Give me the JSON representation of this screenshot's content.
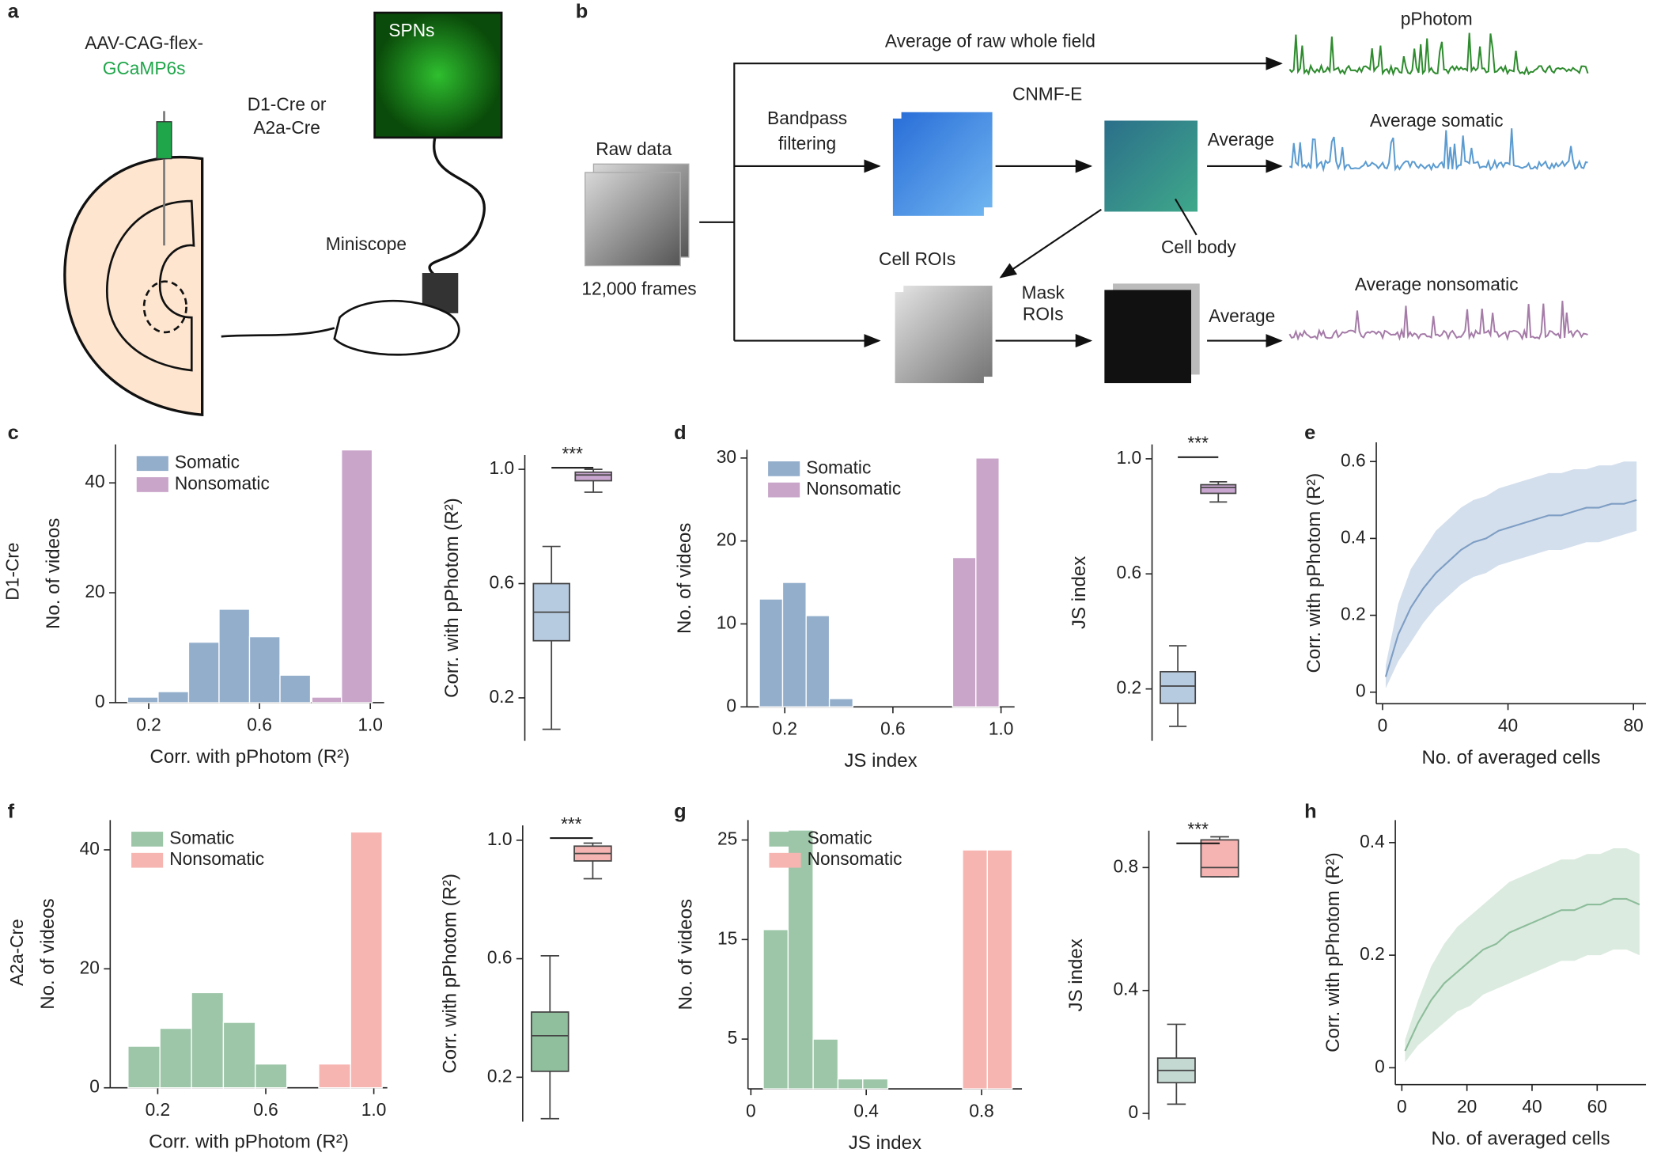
{
  "panel_labels": [
    "a",
    "b",
    "c",
    "d",
    "e",
    "f",
    "g",
    "h"
  ],
  "row_labels": [
    "D1-Cre",
    "A2a-Cre"
  ],
  "diagram_a": {
    "virus_line1": "AAV-CAG-flex-",
    "virus_line2": "GCaMP6s",
    "mouse_line1": "D1-Cre or",
    "mouse_line2": "A2a-Cre",
    "image_label": "SPNs",
    "device": "Miniscope"
  },
  "diagram_b": {
    "top_arrow": "Average of raw whole field",
    "trace1": "pPhotom",
    "method": "CNMF-E",
    "filter_line1": "Bandpass",
    "filter_line2": "filtering",
    "raw": "Raw data",
    "frames": "12,000 frames",
    "average1": "Average",
    "trace2": "Average somatic",
    "cell_body": "Cell body",
    "cell_rois": "Cell ROIs",
    "mask_line1": "Mask",
    "mask_line2": "ROIs",
    "average2": "Average",
    "trace3": "Average nonsomatic"
  },
  "chart_data": [
    {
      "type": "histogram",
      "xlabel": "Corr. with pPhotom (R²)",
      "ylabel": "No. of videos",
      "xlim": [
        0.08,
        1.05
      ],
      "ylim": [
        0,
        47
      ],
      "xticks": [
        0.2,
        0.6,
        {
          "value": 1,
          "label": "1.0"
        }
      ],
      "yticks": [
        0,
        20,
        40
      ],
      "legend": "upper left",
      "series": [
        {
          "name": "Somatic",
          "color": "#93aecb",
          "bins": [
            0.124,
            0.234,
            0.344,
            0.454,
            0.564,
            0.674,
            0.784
          ],
          "values": [
            1,
            2,
            11,
            17,
            12,
            5
          ]
        },
        {
          "name": "Nonsomatic",
          "color": "#c9a5c9",
          "bins": [
            0.789,
            0.896,
            1.007
          ],
          "values": [
            1,
            46
          ]
        }
      ]
    },
    {
      "type": "box",
      "ylabel": "Corr. with pPhotom (R²)",
      "ylim": [
        0.05,
        1.05
      ],
      "yticks": [
        0.2,
        0.6,
        {
          "value": 1,
          "label": "1.0"
        }
      ],
      "annotation": "***",
      "boxes": [
        {
          "color": "#b7cbe0",
          "whislo": 0.09,
          "q1": 0.4,
          "med": 0.5,
          "q3": 0.6,
          "whishi": 0.73
        },
        {
          "color": "#c8a6cf",
          "whislo": 0.92,
          "q1": 0.96,
          "med": 0.98,
          "q3": 0.99,
          "whishi": 1.0
        }
      ]
    },
    {
      "type": "histogram",
      "xlabel": "JS index",
      "ylabel": "No. of videos",
      "xlim": [
        0.06,
        1.05
      ],
      "ylim": [
        0,
        31
      ],
      "xticks": [
        0.2,
        0.6,
        {
          "value": 1,
          "label": "1.0"
        }
      ],
      "yticks": [
        0,
        10,
        20,
        30
      ],
      "legend": "upper left",
      "series": [
        {
          "name": "Somatic",
          "color": "#93aecb",
          "bins": [
            0.106,
            0.192,
            0.279,
            0.365,
            0.452
          ],
          "values": [
            13,
            15,
            11,
            1
          ]
        },
        {
          "name": "Nonsomatic",
          "color": "#c9a5c9",
          "bins": [
            0.821,
            0.907,
            0.993
          ],
          "values": [
            18,
            30
          ]
        }
      ]
    },
    {
      "type": "box",
      "ylabel": "JS index",
      "ylim": [
        0.02,
        1.05
      ],
      "yticks": [
        0.2,
        0.6,
        {
          "value": 1,
          "label": "1.0"
        }
      ],
      "annotation": "***",
      "boxes": [
        {
          "color": "#b7cbe0",
          "whislo": 0.07,
          "q1": 0.15,
          "med": 0.21,
          "q3": 0.26,
          "whishi": 0.35
        },
        {
          "color": "#c8a6cf",
          "whislo": 0.85,
          "q1": 0.88,
          "med": 0.9,
          "q3": 0.91,
          "whishi": 0.92
        }
      ]
    },
    {
      "type": "line",
      "xlabel": "No. of averaged cells",
      "ylabel": "Corr. with pPhotom (R²)",
      "xlim": [
        -2,
        84
      ],
      "ylim": [
        -0.03,
        0.65
      ],
      "xticks": [
        0,
        40,
        80
      ],
      "yticks": [
        0,
        0.2,
        0.4,
        0.6
      ],
      "x": [
        1,
        5,
        9,
        13,
        17,
        21,
        25,
        29,
        33,
        37,
        41,
        45,
        49,
        53,
        57,
        61,
        65,
        69,
        73,
        77,
        81
      ],
      "series": [
        {
          "color": "#7e9ec4",
          "band_color": "#c9d7e8",
          "values": [
            0.04,
            0.15,
            0.22,
            0.27,
            0.31,
            0.34,
            0.37,
            0.39,
            0.4,
            0.42,
            0.43,
            0.44,
            0.45,
            0.46,
            0.46,
            0.47,
            0.48,
            0.48,
            0.49,
            0.49,
            0.5
          ],
          "lower": [
            0.01,
            0.08,
            0.13,
            0.18,
            0.22,
            0.25,
            0.28,
            0.3,
            0.31,
            0.33,
            0.34,
            0.35,
            0.36,
            0.37,
            0.37,
            0.38,
            0.39,
            0.39,
            0.4,
            0.41,
            0.42
          ],
          "upper": [
            0.07,
            0.23,
            0.32,
            0.37,
            0.42,
            0.45,
            0.48,
            0.5,
            0.51,
            0.53,
            0.54,
            0.55,
            0.56,
            0.57,
            0.57,
            0.58,
            0.58,
            0.59,
            0.59,
            0.6,
            0.6
          ]
        }
      ]
    },
    {
      "type": "histogram",
      "xlabel": "Corr. with pPhotom (R²)",
      "ylabel": "No. of videos",
      "xlim": [
        0.024,
        1.05
      ],
      "ylim": [
        0,
        45
      ],
      "xticks": [
        0.2,
        0.6,
        {
          "value": 1,
          "label": "1.0"
        }
      ],
      "yticks": [
        0,
        20,
        40
      ],
      "legend": "upper left",
      "series": [
        {
          "name": "Somatic",
          "color": "#9dc6a8",
          "bins": [
            0.09,
            0.208,
            0.325,
            0.443,
            0.561,
            0.678
          ],
          "values": [
            7,
            10,
            16,
            11,
            4
          ]
        },
        {
          "name": "Nonsomatic",
          "color": "#f7b5b2",
          "bins": [
            0.796,
            0.914,
            1.031
          ],
          "values": [
            4,
            43
          ]
        }
      ]
    },
    {
      "type": "box",
      "ylabel": "Corr. with pPhotom (R²)",
      "ylim": [
        0.05,
        1.05
      ],
      "yticks": [
        0.2,
        0.6,
        {
          "value": 1,
          "label": "1.0"
        }
      ],
      "annotation": "***",
      "boxes": [
        {
          "color": "#8fbf9d",
          "whislo": 0.06,
          "q1": 0.22,
          "med": 0.34,
          "q3": 0.42,
          "whishi": 0.61
        },
        {
          "color": "#f5b3b1",
          "whislo": 0.87,
          "q1": 0.93,
          "med": 0.955,
          "q3": 0.98,
          "whishi": 0.99
        }
      ]
    },
    {
      "type": "histogram",
      "xlabel": "JS index",
      "ylabel": "No. of videos",
      "xlim": [
        -0.01,
        0.94
      ],
      "ylim": [
        0,
        27
      ],
      "xticks": [
        0,
        0.4,
        0.8
      ],
      "yticks": [
        5,
        15,
        25
      ],
      "legend": "upper left",
      "series": [
        {
          "name": "Somatic",
          "color": "#9dc6a8",
          "bins": [
            0.043,
            0.129,
            0.216,
            0.302,
            0.388,
            0.475
          ],
          "values": [
            16,
            26,
            5,
            1,
            1
          ]
        },
        {
          "name": "Nonsomatic",
          "color": "#f7b5b2",
          "bins": [
            0.734,
            0.82,
            0.906
          ],
          "values": [
            24,
            24
          ]
        }
      ]
    },
    {
      "type": "box",
      "ylabel": "JS index",
      "ylim": [
        -0.02,
        0.92
      ],
      "yticks": [
        0,
        0.4,
        0.8
      ],
      "annotation": "***",
      "boxes": [
        {
          "color": "#c5d9d3",
          "whislo": 0.03,
          "q1": 0.1,
          "med": 0.14,
          "q3": 0.18,
          "whishi": 0.29
        },
        {
          "color": "#f5b3b1",
          "whislo": 0.77,
          "q1": 0.77,
          "med": 0.8,
          "q3": 0.89,
          "whishi": 0.9
        }
      ]
    },
    {
      "type": "line",
      "xlabel": "No. of averaged cells",
      "ylabel": "Corr. with pPhotom (R²)",
      "xlim": [
        -2,
        75
      ],
      "ylim": [
        -0.03,
        0.44
      ],
      "xticks": [
        0,
        20,
        40,
        60
      ],
      "yticks": [
        0,
        0.2,
        0.4
      ],
      "x": [
        1,
        5,
        9,
        13,
        17,
        21,
        25,
        29,
        33,
        37,
        41,
        45,
        49,
        53,
        57,
        61,
        65,
        69,
        73
      ],
      "series": [
        {
          "color": "#8dbd9b",
          "band_color": "#d3e6d8",
          "values": [
            0.03,
            0.08,
            0.12,
            0.15,
            0.17,
            0.19,
            0.21,
            0.22,
            0.24,
            0.25,
            0.26,
            0.27,
            0.28,
            0.28,
            0.29,
            0.29,
            0.3,
            0.3,
            0.29
          ],
          "lower": [
            0.01,
            0.04,
            0.06,
            0.08,
            0.1,
            0.11,
            0.13,
            0.14,
            0.15,
            0.16,
            0.17,
            0.18,
            0.19,
            0.19,
            0.2,
            0.2,
            0.21,
            0.21,
            0.2
          ],
          "upper": [
            0.05,
            0.12,
            0.18,
            0.22,
            0.25,
            0.27,
            0.29,
            0.31,
            0.33,
            0.34,
            0.35,
            0.36,
            0.37,
            0.37,
            0.38,
            0.38,
            0.39,
            0.39,
            0.38
          ]
        }
      ]
    }
  ]
}
